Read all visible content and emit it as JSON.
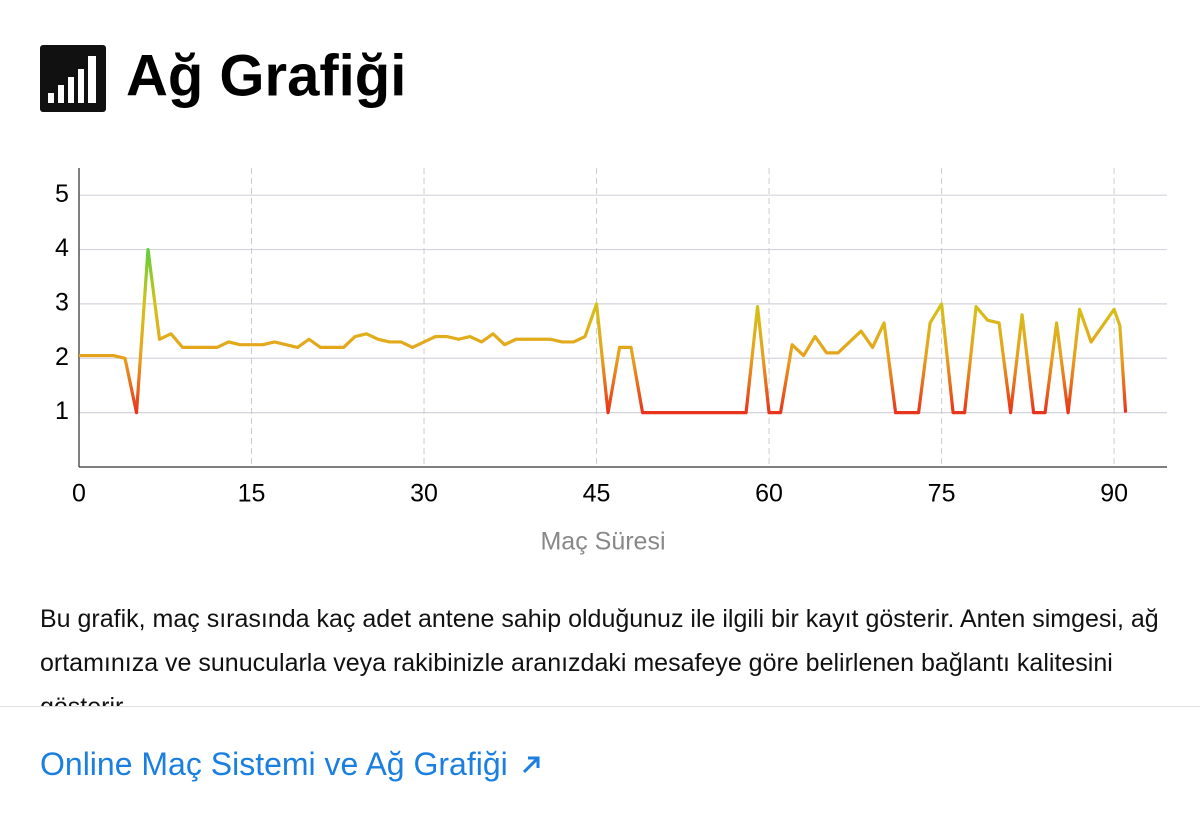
{
  "header": {
    "title": "Ağ Grafiği"
  },
  "chart_data": {
    "type": "line",
    "xlabel": "Maç Süresi",
    "x": [
      0,
      1,
      2,
      3,
      4,
      5,
      6,
      7,
      8,
      9,
      10,
      11,
      12,
      13,
      14,
      15,
      16,
      17,
      18,
      19,
      20,
      21,
      22,
      23,
      24,
      25,
      26,
      27,
      28,
      29,
      30,
      31,
      32,
      33,
      34,
      35,
      36,
      37,
      38,
      39,
      40,
      41,
      42,
      43,
      44,
      45,
      46,
      47,
      48,
      49,
      50,
      51,
      52,
      53,
      54,
      55,
      56,
      57,
      58,
      59,
      60,
      61,
      62,
      63,
      64,
      65,
      66,
      67,
      68,
      69,
      70,
      71,
      72,
      73,
      74,
      75,
      76,
      77,
      78,
      79,
      80,
      81,
      82,
      83,
      84,
      85,
      86,
      87,
      88,
      89,
      90,
      90.5,
      91
    ],
    "values": [
      2.05,
      2.05,
      2.05,
      2.05,
      2.0,
      1.0,
      4.0,
      2.35,
      2.45,
      2.2,
      2.2,
      2.2,
      2.2,
      2.3,
      2.25,
      2.25,
      2.25,
      2.3,
      2.25,
      2.2,
      2.35,
      2.2,
      2.2,
      2.2,
      2.4,
      2.45,
      2.35,
      2.3,
      2.3,
      2.2,
      2.3,
      2.4,
      2.4,
      2.35,
      2.4,
      2.3,
      2.45,
      2.25,
      2.35,
      2.35,
      2.35,
      2.35,
      2.3,
      2.3,
      2.4,
      3.0,
      1.0,
      2.2,
      2.2,
      1.0,
      1.0,
      1.0,
      1.0,
      1.0,
      1.0,
      1.0,
      1.0,
      1.0,
      1.0,
      2.95,
      1.0,
      1.0,
      2.25,
      2.05,
      2.4,
      2.1,
      2.1,
      2.3,
      2.5,
      2.2,
      2.65,
      1.0,
      1.0,
      1.0,
      2.65,
      3.0,
      1.0,
      1.0,
      2.95,
      2.7,
      2.65,
      1.0,
      2.8,
      1.0,
      1.0,
      2.65,
      1.0,
      2.9,
      2.3,
      2.6,
      2.9,
      2.6,
      1.0
    ],
    "color_stops": [
      {
        "value": 1,
        "color": "#e8341c"
      },
      {
        "value": 2,
        "color": "#e8a01c"
      },
      {
        "value": 3,
        "color": "#d4c21a"
      },
      {
        "value": 4,
        "color": "#5fcf3a"
      }
    ],
    "xlim": [
      0,
      94.6
    ],
    "xticks": [
      0,
      15,
      30,
      45,
      60,
      75,
      90
    ],
    "ylim": [
      0,
      5.5
    ],
    "yticks": [
      1,
      2,
      3,
      4,
      5
    ],
    "grid": true
  },
  "description": "Bu grafik, maç sırasında kaç adet antene sahip olduğunuz ile ilgili bir kayıt gösterir. Anten simgesi, ağ ortamınıza ve sunucularla veya rakibinizle aranızdaki mesafeye göre belirlenen bağlantı kalitesini gösterir.",
  "link": {
    "label": "Online Maç Sistemi ve Ağ Grafiği"
  }
}
